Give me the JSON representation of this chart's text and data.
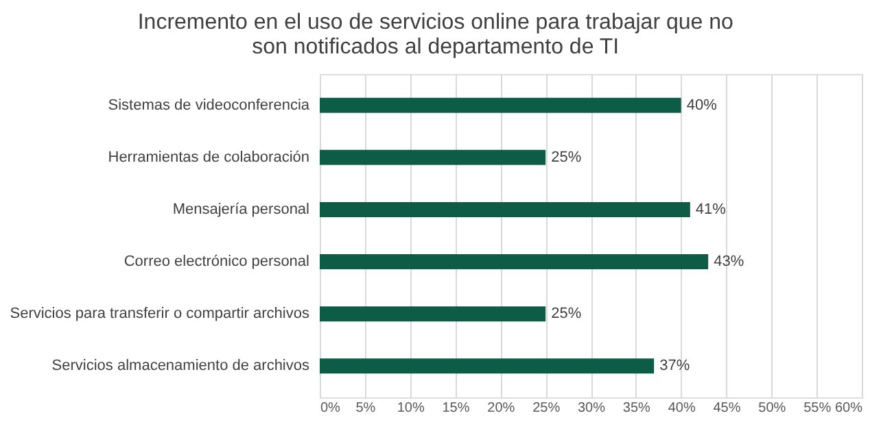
{
  "chart_data": {
    "type": "bar",
    "orientation": "horizontal",
    "title": "Incremento en el uso de servicios online para trabajar que no son notificados al departamento de TI",
    "categories": [
      "Sistemas de videoconferencia",
      "Herramientas de colaboración",
      "Mensajería personal",
      "Correo electrónico personal",
      "Servicios para transferir o compartir archivos",
      "Servicios almacenamiento de archivos"
    ],
    "values": [
      40,
      25,
      41,
      43,
      25,
      37
    ],
    "value_labels": [
      "40%",
      "25%",
      "41%",
      "43%",
      "25%",
      "37%"
    ],
    "color": "#0d5c46",
    "xlim": [
      0,
      60
    ],
    "xticks": [
      {
        "value": 0,
        "label": "0%"
      },
      {
        "value": 5,
        "label": "5%"
      },
      {
        "value": 10,
        "label": "10%"
      },
      {
        "value": 15,
        "label": "15%"
      },
      {
        "value": 20,
        "label": "20%"
      },
      {
        "value": 25,
        "label": "25%"
      },
      {
        "value": 30,
        "label": "30%"
      },
      {
        "value": 35,
        "label": "35%"
      },
      {
        "value": 40,
        "label": "40%"
      },
      {
        "value": 45,
        "label": "45%"
      },
      {
        "value": 50,
        "label": "50%"
      },
      {
        "value": 55,
        "label": "55%"
      },
      {
        "value": 60,
        "label": "60%"
      }
    ],
    "grid": "x"
  }
}
